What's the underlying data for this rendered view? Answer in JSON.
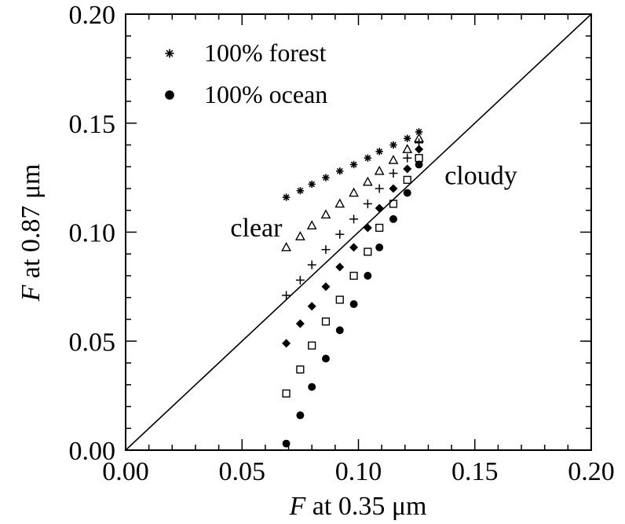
{
  "chart_data": {
    "type": "scatter",
    "title": "",
    "xlabel": {
      "var": "F",
      "rest": " at 0.35 μm"
    },
    "ylabel": {
      "var": "F",
      "rest": " at 0.87 μm"
    },
    "xlim": [
      0.0,
      0.2
    ],
    "ylim": [
      0.0,
      0.2
    ],
    "xticks": [
      "0.00",
      "0.05",
      "0.10",
      "0.15",
      "0.20"
    ],
    "yticks": [
      "0.00",
      "0.05",
      "0.10",
      "0.15",
      "0.20"
    ],
    "grid": false,
    "legend_position": "top-left",
    "reference_line": {
      "name": "1:1 line",
      "from": [
        0.0,
        0.0
      ],
      "to": [
        0.2,
        0.2
      ]
    },
    "annotations": [
      {
        "text": "clear",
        "x": 0.045,
        "y": 0.098
      },
      {
        "text": "cloudy",
        "x": 0.137,
        "y": 0.122
      }
    ],
    "series": [
      {
        "name": "100% forest",
        "marker": "asterisk",
        "points": [
          [
            0.069,
            0.116
          ],
          [
            0.075,
            0.119
          ],
          [
            0.08,
            0.122
          ],
          [
            0.086,
            0.125
          ],
          [
            0.092,
            0.128
          ],
          [
            0.098,
            0.131
          ],
          [
            0.104,
            0.134
          ],
          [
            0.109,
            0.137
          ],
          [
            0.115,
            0.14
          ],
          [
            0.121,
            0.143
          ],
          [
            0.126,
            0.146
          ]
        ]
      },
      {
        "marker": "open-triangle",
        "points": [
          [
            0.069,
            0.093
          ],
          [
            0.075,
            0.098
          ],
          [
            0.08,
            0.103
          ],
          [
            0.086,
            0.108
          ],
          [
            0.092,
            0.113
          ],
          [
            0.098,
            0.118
          ],
          [
            0.104,
            0.123
          ],
          [
            0.109,
            0.128
          ],
          [
            0.115,
            0.133
          ],
          [
            0.121,
            0.138
          ],
          [
            0.126,
            0.143
          ]
        ]
      },
      {
        "marker": "plus",
        "points": [
          [
            0.069,
            0.071
          ],
          [
            0.075,
            0.078
          ],
          [
            0.08,
            0.085
          ],
          [
            0.086,
            0.092
          ],
          [
            0.092,
            0.099
          ],
          [
            0.098,
            0.106
          ],
          [
            0.104,
            0.113
          ],
          [
            0.109,
            0.12
          ],
          [
            0.115,
            0.127
          ],
          [
            0.121,
            0.134
          ],
          [
            0.126,
            0.141
          ]
        ]
      },
      {
        "marker": "filled-diamond",
        "points": [
          [
            0.069,
            0.049
          ],
          [
            0.075,
            0.058
          ],
          [
            0.08,
            0.066
          ],
          [
            0.086,
            0.075
          ],
          [
            0.092,
            0.084
          ],
          [
            0.098,
            0.093
          ],
          [
            0.104,
            0.102
          ],
          [
            0.109,
            0.111
          ],
          [
            0.115,
            0.12
          ],
          [
            0.121,
            0.129
          ],
          [
            0.126,
            0.138
          ]
        ]
      },
      {
        "marker": "open-square",
        "points": [
          [
            0.069,
            0.026
          ],
          [
            0.075,
            0.037
          ],
          [
            0.08,
            0.048
          ],
          [
            0.086,
            0.059
          ],
          [
            0.092,
            0.069
          ],
          [
            0.098,
            0.08
          ],
          [
            0.104,
            0.091
          ],
          [
            0.109,
            0.102
          ],
          [
            0.115,
            0.113
          ],
          [
            0.121,
            0.124
          ],
          [
            0.126,
            0.134
          ]
        ]
      },
      {
        "name": "100% ocean",
        "marker": "filled-circle",
        "points": [
          [
            0.069,
            0.003
          ],
          [
            0.075,
            0.016
          ],
          [
            0.08,
            0.029
          ],
          [
            0.086,
            0.042
          ],
          [
            0.092,
            0.055
          ],
          [
            0.098,
            0.067
          ],
          [
            0.104,
            0.08
          ],
          [
            0.109,
            0.093
          ],
          [
            0.115,
            0.106
          ],
          [
            0.121,
            0.118
          ],
          [
            0.126,
            0.131
          ]
        ]
      }
    ]
  }
}
